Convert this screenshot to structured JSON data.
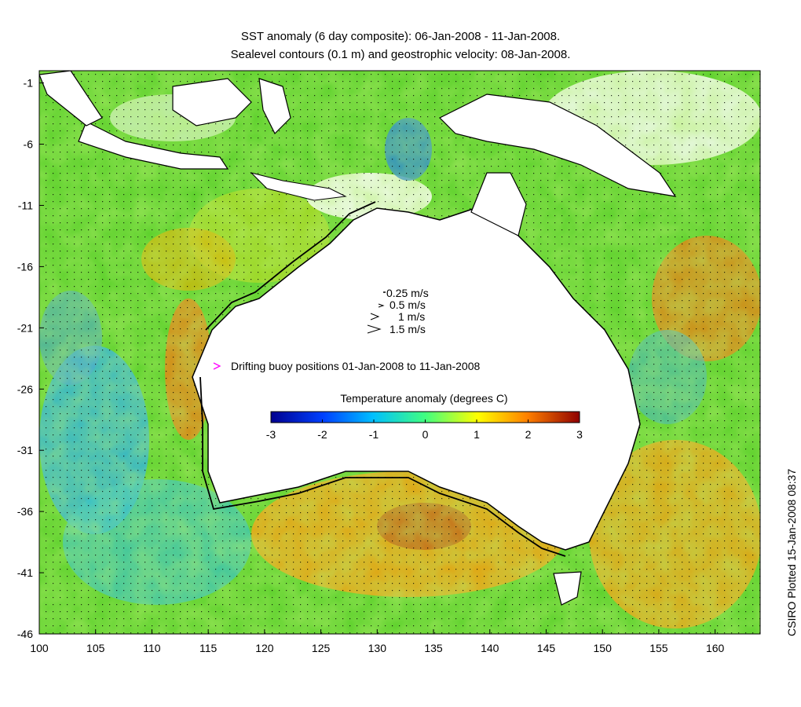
{
  "title": {
    "line1": "SST anomaly (6 day composite): 06-Jan-2008 - 11-Jan-2008.",
    "line2": "Sealevel contours (0.1 m) and geostrophic velocity: 08-Jan-2008."
  },
  "axes": {
    "x_ticks": [
      "100",
      "105",
      "110",
      "115",
      "120",
      "125",
      "130",
      "135",
      "140",
      "145",
      "150",
      "155",
      "160"
    ],
    "y_ticks": [
      "-1",
      "-6",
      "-11",
      "-16",
      "-21",
      "-26",
      "-31",
      "-36",
      "-41",
      "-46"
    ],
    "xlim": [
      100,
      164
    ],
    "ylim": [
      -46,
      0
    ]
  },
  "velocity_legend": [
    {
      "label": "0.25 m/s",
      "speed": 0.25
    },
    {
      "label": "0.5 m/s",
      "speed": 0.5
    },
    {
      "label": "1 m/s",
      "speed": 1
    },
    {
      "label": "1.5 m/s",
      "speed": 1.5
    }
  ],
  "buoy_legend": {
    "label": "Drifting buoy positions 01-Jan-2008 to 11-Jan-2008",
    "color": "#ff00ff"
  },
  "colorbar": {
    "title": "Temperature anomaly (degrees C)",
    "ticks": [
      "-3",
      "-2",
      "-1",
      "0",
      "1",
      "2",
      "3"
    ],
    "range": [
      -3,
      3
    ],
    "colors": [
      "#00008f",
      "#0040ff",
      "#00bfff",
      "#40ff80",
      "#ffff00",
      "#ff8000",
      "#8f0000"
    ]
  },
  "credit": "CSIRO Plotted 15-Jan-2008 08:37"
}
